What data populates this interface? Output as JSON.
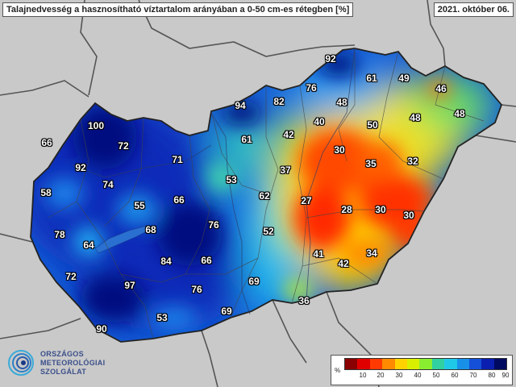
{
  "title": "Talajnedvesség a hasznosítható víztartalom arányában a 0-50 cm-es rétegben [%]",
  "date": "2021. október 06.",
  "logo": {
    "line1": "ORSZÁGOS",
    "line2": "METEOROLÓGIAI",
    "line3": "SZOLGÁLAT",
    "icon": "omsz-rings-logo"
  },
  "legend": {
    "unit": "%",
    "ticks": [
      "10",
      "20",
      "30",
      "40",
      "50",
      "60",
      "70",
      "80",
      "90"
    ],
    "colors": [
      "#8b0000",
      "#e00000",
      "#ff3a00",
      "#ff8a00",
      "#ffd200",
      "#d8f000",
      "#8aee30",
      "#30d0a0",
      "#20c8e8",
      "#1890e8",
      "#1450d8",
      "#0a1eb0",
      "#000a60"
    ]
  },
  "colors": {
    "background": "#c9c9c9",
    "border": "#555555",
    "country_outline": "#222222",
    "text_outline": "#000000"
  },
  "map_values": [
    {
      "id": "v1",
      "value": "92"
    },
    {
      "id": "v2",
      "value": "61"
    },
    {
      "id": "v3",
      "value": "49"
    },
    {
      "id": "v4",
      "value": "46"
    },
    {
      "id": "v5",
      "value": "76"
    },
    {
      "id": "v6",
      "value": "94"
    },
    {
      "id": "v7",
      "value": "82"
    },
    {
      "id": "v8",
      "value": "48"
    },
    {
      "id": "v9",
      "value": "48"
    },
    {
      "id": "v10",
      "value": "48"
    },
    {
      "id": "v11",
      "value": "100"
    },
    {
      "id": "v12",
      "value": "66"
    },
    {
      "id": "v13",
      "value": "72"
    },
    {
      "id": "v14",
      "value": "40"
    },
    {
      "id": "v15",
      "value": "50"
    },
    {
      "id": "v16",
      "value": "42"
    },
    {
      "id": "v17",
      "value": "61"
    },
    {
      "id": "v18",
      "value": "30"
    },
    {
      "id": "v19",
      "value": "71"
    },
    {
      "id": "v20",
      "value": "92"
    },
    {
      "id": "v21",
      "value": "35"
    },
    {
      "id": "v22",
      "value": "32"
    },
    {
      "id": "v23",
      "value": "37"
    },
    {
      "id": "v24",
      "value": "74"
    },
    {
      "id": "v25",
      "value": "53"
    },
    {
      "id": "v26",
      "value": "58"
    },
    {
      "id": "v27",
      "value": "62"
    },
    {
      "id": "v28",
      "value": "66"
    },
    {
      "id": "v29",
      "value": "27"
    },
    {
      "id": "v30",
      "value": "55"
    },
    {
      "id": "v31",
      "value": "28"
    },
    {
      "id": "v32",
      "value": "30"
    },
    {
      "id": "v33",
      "value": "30"
    },
    {
      "id": "v34",
      "value": "78"
    },
    {
      "id": "v35",
      "value": "76"
    },
    {
      "id": "v36",
      "value": "68"
    },
    {
      "id": "v37",
      "value": "52"
    },
    {
      "id": "v38",
      "value": "64"
    },
    {
      "id": "v39",
      "value": "41"
    },
    {
      "id": "v40",
      "value": "34"
    },
    {
      "id": "v41",
      "value": "84"
    },
    {
      "id": "v42",
      "value": "66"
    },
    {
      "id": "v43",
      "value": "42"
    },
    {
      "id": "v44",
      "value": "72"
    },
    {
      "id": "v45",
      "value": "69"
    },
    {
      "id": "v46",
      "value": "97"
    },
    {
      "id": "v47",
      "value": "76"
    },
    {
      "id": "v48",
      "value": "36"
    },
    {
      "id": "v49",
      "value": "69"
    },
    {
      "id": "v50",
      "value": "53"
    },
    {
      "id": "v51",
      "value": "90"
    }
  ]
}
